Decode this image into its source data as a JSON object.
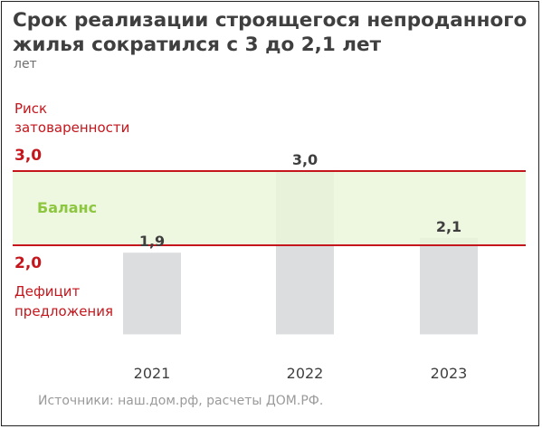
{
  "title_line1": "Срок реализации строящегося непроданного",
  "title_line2": "жилья сократился с 3 до 2,1 лет",
  "unit": "лет",
  "source": "Источники: наш.дом.рф, расчеты ДОМ.РФ.",
  "colors": {
    "bar": "#dcdddf",
    "band": "#eaf5d9",
    "threshold": "#c4161c",
    "balance_text": "#8dc63f",
    "label_text": "#3f3f3f"
  },
  "chart_data": {
    "type": "bar",
    "categories": [
      "2021",
      "2022",
      "2023"
    ],
    "values": [
      1.9,
      3.0,
      2.1
    ],
    "value_labels": [
      "1,9",
      "3,0",
      "2,1"
    ],
    "ylim": [
      0.8,
      3.4
    ],
    "band": {
      "from": 2.0,
      "to": 3.0,
      "label": "Баланс"
    },
    "upper_threshold": {
      "value": 3.0,
      "value_label": "3,0",
      "text_line1": "Риск",
      "text_line2": "затоваренности"
    },
    "lower_threshold": {
      "value": 2.0,
      "value_label": "2,0",
      "text_line1": "Дефицит",
      "text_line2": "предложения"
    },
    "grid": false,
    "legend": "none"
  }
}
